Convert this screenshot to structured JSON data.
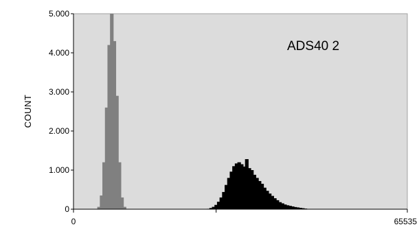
{
  "chart_data": {
    "type": "bar",
    "title": "",
    "xlabel": "",
    "ylabel": "COUNT",
    "annotation": "ADS40 2",
    "xlim": [
      0,
      65535
    ],
    "ylim": [
      0,
      5000
    ],
    "y_ticks": [
      {
        "value": 0,
        "label": "0"
      },
      {
        "value": 1000,
        "label": "1.000"
      },
      {
        "value": 2000,
        "label": "2.000"
      },
      {
        "value": 3000,
        "label": "3.000"
      },
      {
        "value": 4000,
        "label": "4.000"
      },
      {
        "value": 5000,
        "label": "5.000"
      }
    ],
    "x_ticks": [
      {
        "value": 0,
        "label": "0"
      },
      {
        "value": 28000,
        "label": ""
      },
      {
        "value": 65535,
        "label": "65535"
      }
    ],
    "bin_width": 660,
    "grid": false,
    "colors": {
      "plot_background": "#dcdcdc",
      "frame": "#a0a0a0"
    },
    "series": [
      {
        "color": "#808080",
        "x": [
          5000,
          5500,
          6000,
          6500,
          7000,
          7500,
          8000,
          8500,
          9000,
          9500,
          10000
        ],
        "values": [
          60,
          350,
          1200,
          2600,
          4200,
          5000,
          4300,
          2900,
          1200,
          300,
          60
        ]
      },
      {
        "color": "#000000",
        "x": [
          26500,
          27000,
          27500,
          28000,
          28500,
          29000,
          29500,
          30000,
          30500,
          31000,
          31500,
          32000,
          32500,
          33000,
          33500,
          34000,
          34500,
          35000,
          35500,
          36000,
          36500,
          37000,
          37500,
          38000,
          38500,
          39000,
          39500,
          40000,
          40500,
          41000,
          41500,
          42000,
          42500,
          43000,
          43500,
          44000,
          44500,
          45000,
          45500,
          46000
        ],
        "values": [
          10,
          30,
          60,
          110,
          190,
          300,
          440,
          620,
          800,
          960,
          1100,
          1170,
          1200,
          1150,
          1090,
          1280,
          1050,
          1000,
          880,
          800,
          720,
          650,
          550,
          470,
          400,
          340,
          280,
          230,
          180,
          150,
          120,
          100,
          85,
          70,
          55,
          45,
          35,
          25,
          15,
          8
        ]
      }
    ]
  }
}
